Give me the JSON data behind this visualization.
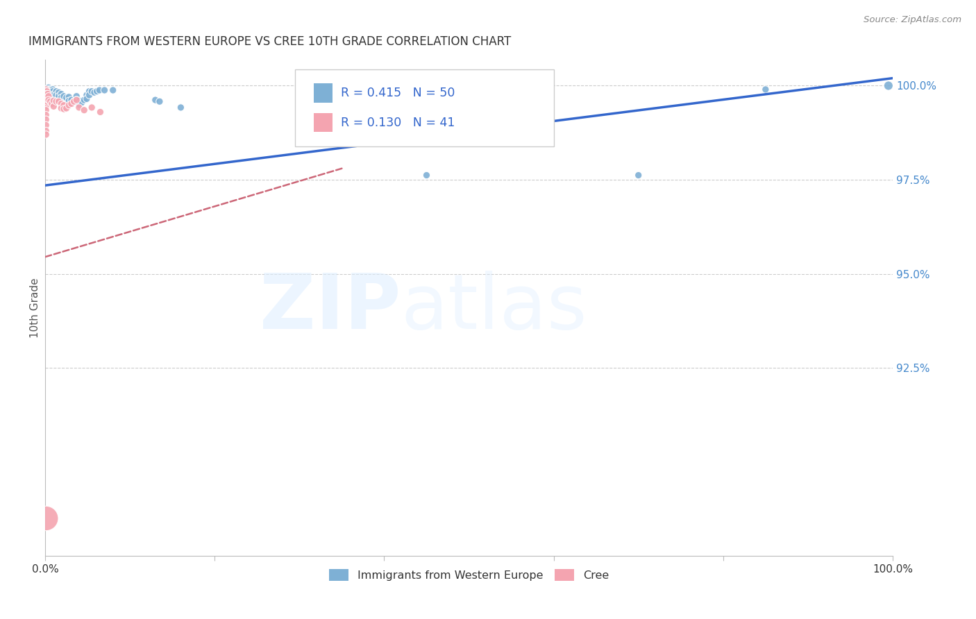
{
  "title": "IMMIGRANTS FROM WESTERN EUROPE VS CREE 10TH GRADE CORRELATION CHART",
  "source": "Source: ZipAtlas.com",
  "ylabel": "10th Grade",
  "ylabel_right_labels": [
    "100.0%",
    "97.5%",
    "95.0%",
    "92.5%"
  ],
  "ylabel_right_values": [
    1.0,
    0.975,
    0.95,
    0.925
  ],
  "blue_R": 0.415,
  "blue_N": 50,
  "pink_R": 0.13,
  "pink_N": 41,
  "blue_color": "#7EB0D5",
  "pink_color": "#F4A4B0",
  "trend_blue": "#3366CC",
  "trend_pink": "#CC6677",
  "legend_blue": "Immigrants from Western Europe",
  "legend_pink": "Cree",
  "blue_trend_x": [
    0.0,
    1.0
  ],
  "blue_trend_y": [
    0.9735,
    1.002
  ],
  "pink_trend_x": [
    0.0,
    0.35
  ],
  "pink_trend_y": [
    0.9545,
    0.978
  ],
  "blue_points": [
    [
      0.001,
      0.999
    ],
    [
      0.001,
      0.9985
    ],
    [
      0.004,
      0.9995
    ],
    [
      0.004,
      0.999
    ],
    [
      0.004,
      0.9985
    ],
    [
      0.004,
      0.998
    ],
    [
      0.006,
      0.999
    ],
    [
      0.006,
      0.9985
    ],
    [
      0.007,
      0.999
    ],
    [
      0.007,
      0.9985
    ],
    [
      0.007,
      0.998
    ],
    [
      0.009,
      0.999
    ],
    [
      0.009,
      0.9985
    ],
    [
      0.009,
      0.9975
    ],
    [
      0.011,
      0.9978
    ],
    [
      0.013,
      0.9985
    ],
    [
      0.013,
      0.9975
    ],
    [
      0.016,
      0.9982
    ],
    [
      0.016,
      0.9972
    ],
    [
      0.019,
      0.9978
    ],
    [
      0.019,
      0.9968
    ],
    [
      0.022,
      0.9972
    ],
    [
      0.025,
      0.9968
    ],
    [
      0.028,
      0.997
    ],
    [
      0.028,
      0.996
    ],
    [
      0.031,
      0.9962
    ],
    [
      0.034,
      0.9958
    ],
    [
      0.037,
      0.9972
    ],
    [
      0.037,
      0.9962
    ],
    [
      0.04,
      0.996
    ],
    [
      0.04,
      0.995
    ],
    [
      0.043,
      0.9955
    ],
    [
      0.046,
      0.9962
    ],
    [
      0.049,
      0.9975
    ],
    [
      0.049,
      0.9965
    ],
    [
      0.052,
      0.9985
    ],
    [
      0.052,
      0.9975
    ],
    [
      0.055,
      0.9985
    ],
    [
      0.058,
      0.9982
    ],
    [
      0.061,
      0.9985
    ],
    [
      0.064,
      0.9988
    ],
    [
      0.07,
      0.9988
    ],
    [
      0.08,
      0.9988
    ],
    [
      0.13,
      0.9962
    ],
    [
      0.135,
      0.9958
    ],
    [
      0.16,
      0.9942
    ],
    [
      0.45,
      0.9762
    ],
    [
      0.7,
      0.9762
    ],
    [
      0.85,
      0.999
    ],
    [
      0.995,
      1.0
    ]
  ],
  "pink_points": [
    [
      0.001,
      0.999
    ],
    [
      0.001,
      0.9985
    ],
    [
      0.001,
      0.9978
    ],
    [
      0.001,
      0.997
    ],
    [
      0.001,
      0.9962
    ],
    [
      0.001,
      0.9955
    ],
    [
      0.001,
      0.9945
    ],
    [
      0.001,
      0.9935
    ],
    [
      0.001,
      0.9922
    ],
    [
      0.001,
      0.991
    ],
    [
      0.001,
      0.9895
    ],
    [
      0.001,
      0.988
    ],
    [
      0.001,
      0.987
    ],
    [
      0.002,
      0.9985
    ],
    [
      0.002,
      0.9978
    ],
    [
      0.002,
      0.9968
    ],
    [
      0.002,
      0.9958
    ],
    [
      0.003,
      0.9978
    ],
    [
      0.003,
      0.9968
    ],
    [
      0.004,
      0.9972
    ],
    [
      0.004,
      0.9962
    ],
    [
      0.006,
      0.9958
    ],
    [
      0.008,
      0.9952
    ],
    [
      0.01,
      0.996
    ],
    [
      0.01,
      0.9945
    ],
    [
      0.013,
      0.9958
    ],
    [
      0.016,
      0.9958
    ],
    [
      0.019,
      0.9952
    ],
    [
      0.019,
      0.994
    ],
    [
      0.022,
      0.9948
    ],
    [
      0.022,
      0.9938
    ],
    [
      0.025,
      0.994
    ],
    [
      0.028,
      0.9948
    ],
    [
      0.031,
      0.9952
    ],
    [
      0.034,
      0.9958
    ],
    [
      0.037,
      0.9962
    ],
    [
      0.04,
      0.9942
    ],
    [
      0.046,
      0.9935
    ],
    [
      0.055,
      0.9942
    ],
    [
      0.065,
      0.993
    ],
    [
      0.001,
      0.885
    ]
  ],
  "xmin": 0.0,
  "xmax": 1.0,
  "ymin": 0.875,
  "ymax": 1.007
}
